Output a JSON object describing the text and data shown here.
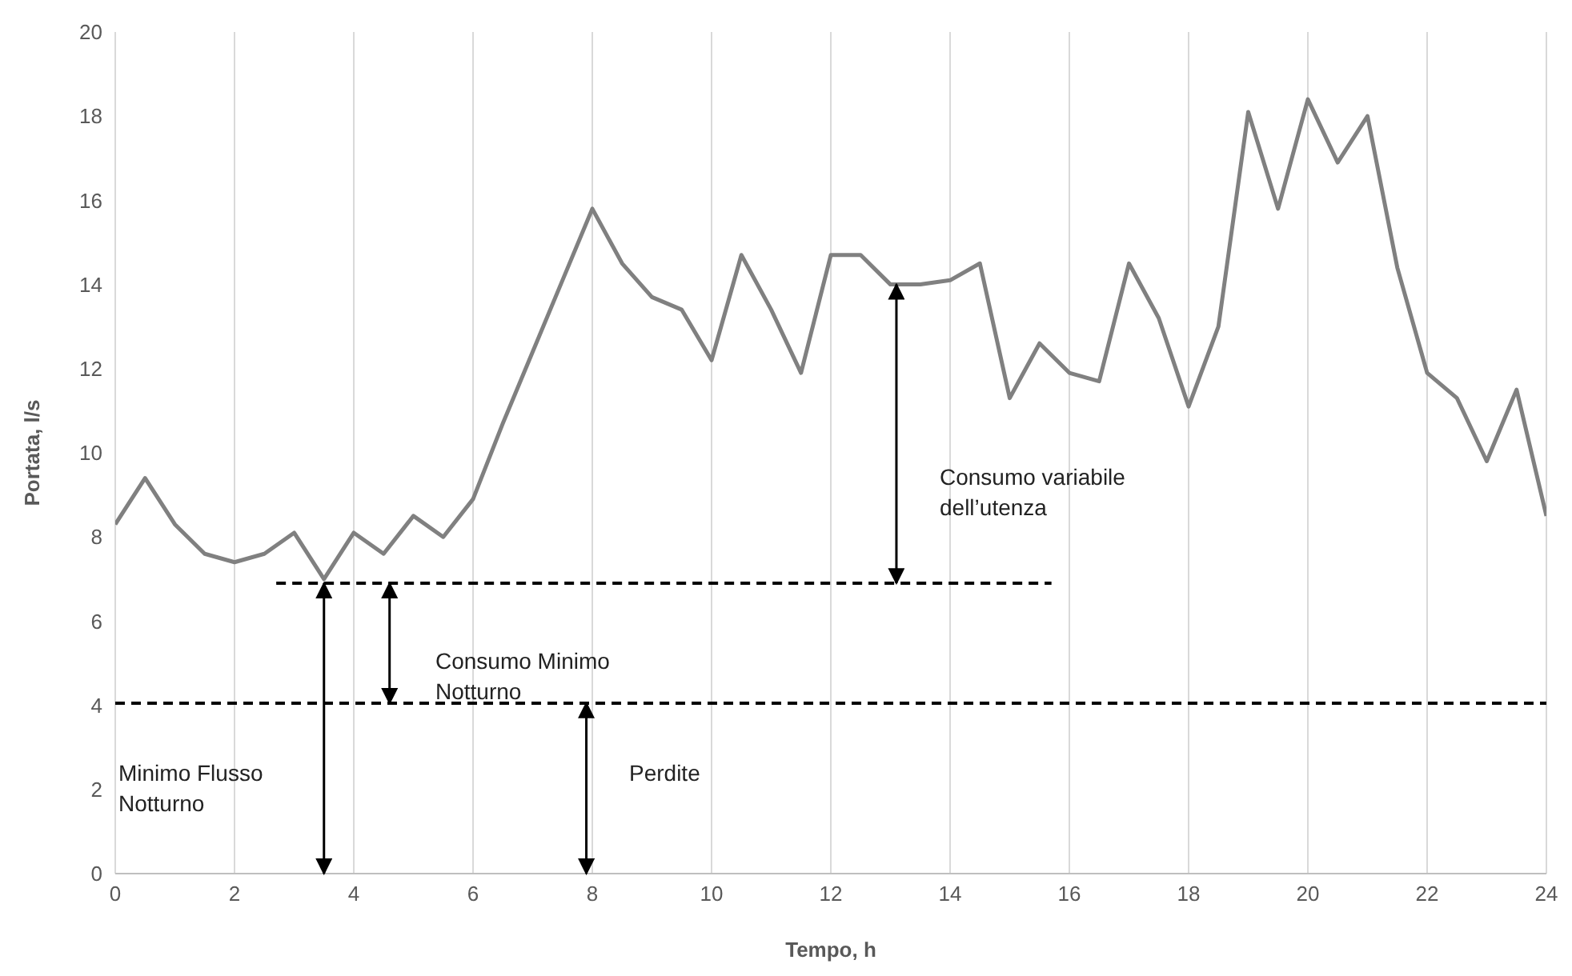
{
  "chart_data": {
    "type": "line",
    "xlabel": "Tempo, h",
    "ylabel": "Portata, l/s",
    "x": [
      0,
      0.5,
      1,
      1.5,
      2,
      2.5,
      3,
      3.5,
      4,
      4.5,
      5,
      5.5,
      6,
      6.5,
      7,
      7.5,
      8,
      8.5,
      9,
      9.5,
      10,
      10.5,
      11,
      11.5,
      12,
      12.5,
      13,
      13.5,
      14,
      14.5,
      15,
      15.5,
      16,
      16.5,
      17,
      17.5,
      18,
      18.5,
      19,
      19.5,
      20,
      20.5,
      21,
      21.5,
      22,
      22.5,
      23,
      23.5,
      24
    ],
    "series": [
      {
        "color": "#808080",
        "values": [
          8.3,
          9.4,
          8.3,
          7.6,
          7.4,
          7.6,
          8.1,
          7.0,
          8.1,
          7.6,
          8.5,
          8.0,
          8.9,
          10.7,
          12.4,
          14.1,
          15.8,
          14.5,
          13.7,
          13.4,
          12.2,
          14.7,
          13.4,
          11.9,
          14.7,
          14.7,
          14.0,
          14.0,
          14.1,
          14.5,
          11.3,
          12.6,
          11.9,
          11.7,
          14.5,
          13.2,
          11.1,
          13.0,
          18.1,
          15.8,
          18.4,
          16.9,
          18.0,
          14.4,
          11.9,
          11.3,
          9.8,
          11.5,
          8.5
        ]
      },
      {
        "type": "line",
        "color": "#000000",
        "line_style": "dashed",
        "x": [
          2.7,
          15.7
        ],
        "values": [
          6.9,
          6.9
        ]
      }
    ],
    "ref_lines": [
      {
        "axis": "y",
        "value": 4.05,
        "color": "#000000",
        "line_style": "dashed"
      }
    ],
    "annotations": [
      "Consumo variabile\ndell’utenza",
      "Consumo Minimo\nNotturno",
      "Minimo Flusso\nNotturno",
      "Perdite"
    ],
    "xlim": [
      0,
      24
    ],
    "xticks": [
      0,
      2,
      4,
      6,
      8,
      10,
      12,
      14,
      16,
      18,
      20,
      22,
      24
    ],
    "ylim": [
      0,
      20
    ],
    "yticks": [
      0,
      2,
      4,
      6,
      8,
      10,
      12,
      14,
      16,
      18,
      20
    ],
    "grid": "x",
    "legend": false,
    "marker": "none",
    "line_style": "solid"
  }
}
